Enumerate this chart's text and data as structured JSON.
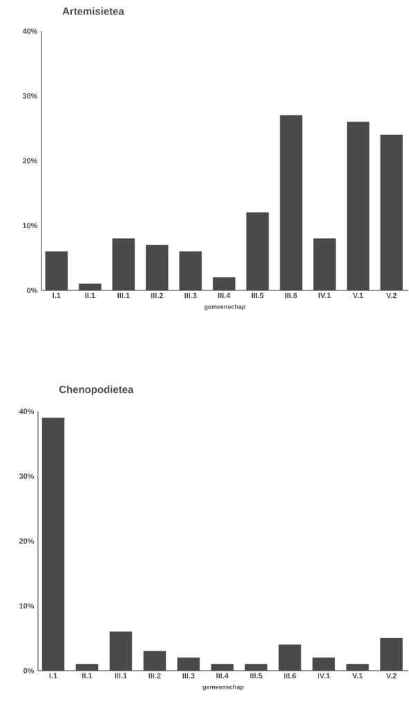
{
  "chart_data": [
    {
      "type": "bar",
      "title": "Artemisietea",
      "xlabel": "gemeenschap",
      "categories": [
        "I.1",
        "II.1",
        "III.1",
        "III.2",
        "III.3",
        "III.4",
        "III.5",
        "III.6",
        "IV.1",
        "V.1",
        "V.2"
      ],
      "values": [
        6,
        1,
        8,
        7,
        6,
        2,
        12,
        27,
        8,
        26,
        24
      ],
      "color": "#4a4a4a",
      "ylim": [
        0,
        40
      ],
      "yticks": [
        {
          "value": 0,
          "label": "0%"
        },
        {
          "value": 10,
          "label": "10%"
        },
        {
          "value": 20,
          "label": "20%"
        },
        {
          "value": 30,
          "label": "30%"
        },
        {
          "value": 40,
          "label": "40%"
        }
      ]
    },
    {
      "type": "bar",
      "title": "Chenopodietea",
      "xlabel": "gemeenschap",
      "categories": [
        "I.1",
        "II.1",
        "III.1",
        "III.2",
        "III.3",
        "III.4",
        "III.5",
        "III.6",
        "IV.1",
        "V.1",
        "V.2"
      ],
      "values": [
        39,
        1,
        6,
        3,
        2,
        1,
        1,
        4,
        2,
        1,
        5
      ],
      "color": "#4a4a4a",
      "ylim": [
        0,
        40
      ],
      "yticks": [
        {
          "value": 0,
          "label": "0%"
        },
        {
          "value": 10,
          "label": "10%"
        },
        {
          "value": 20,
          "label": "20%"
        },
        {
          "value": 30,
          "label": "30%"
        },
        {
          "value": 40,
          "label": "40%"
        }
      ]
    }
  ]
}
